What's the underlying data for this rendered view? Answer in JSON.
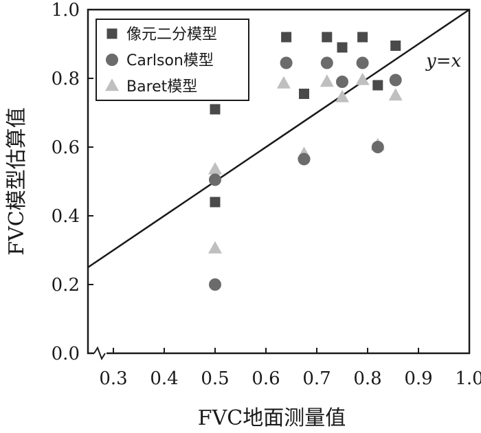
{
  "chart_data": {
    "type": "scatter",
    "xlabel": "FVC地面测量值",
    "ylabel": "FVC模型估算值",
    "xlim": [
      0.25,
      1.0
    ],
    "ylim": [
      0.0,
      1.0
    ],
    "x_ticks": [
      "0.3",
      "0.4",
      "0.5",
      "0.6",
      "0.7",
      "0.8",
      "0.9",
      "1.0"
    ],
    "y_ticks": [
      "0.0",
      "0.2",
      "0.4",
      "0.6",
      "0.8",
      "1.0"
    ],
    "axis_break": "x",
    "legend_position": "top-left",
    "grid": false,
    "reference_line": {
      "label": "y=x",
      "slope": 1,
      "intercept": 0
    },
    "series": [
      {
        "name": "像元二分模型",
        "marker": "square",
        "color": "#4a4a4a",
        "points": [
          [
            0.5,
            0.71
          ],
          [
            0.5,
            0.44
          ],
          [
            0.64,
            0.92
          ],
          [
            0.675,
            0.755
          ],
          [
            0.72,
            0.92
          ],
          [
            0.75,
            0.89
          ],
          [
            0.79,
            0.92
          ],
          [
            0.82,
            0.78
          ],
          [
            0.855,
            0.895
          ]
        ]
      },
      {
        "name": "Carlson模型",
        "marker": "circle",
        "color": "#6b6b6b",
        "points": [
          [
            0.5,
            0.505
          ],
          [
            0.5,
            0.2
          ],
          [
            0.64,
            0.845
          ],
          [
            0.675,
            0.565
          ],
          [
            0.72,
            0.845
          ],
          [
            0.75,
            0.79
          ],
          [
            0.79,
            0.845
          ],
          [
            0.82,
            0.6
          ],
          [
            0.855,
            0.795
          ]
        ]
      },
      {
        "name": "Baret模型",
        "marker": "triangle",
        "color": "#bfbfbf",
        "points": [
          [
            0.5,
            0.535
          ],
          [
            0.5,
            0.305
          ],
          [
            0.635,
            0.785
          ],
          [
            0.675,
            0.58
          ],
          [
            0.72,
            0.79
          ],
          [
            0.75,
            0.745
          ],
          [
            0.79,
            0.795
          ],
          [
            0.82,
            0.605
          ],
          [
            0.855,
            0.75
          ]
        ]
      }
    ]
  }
}
